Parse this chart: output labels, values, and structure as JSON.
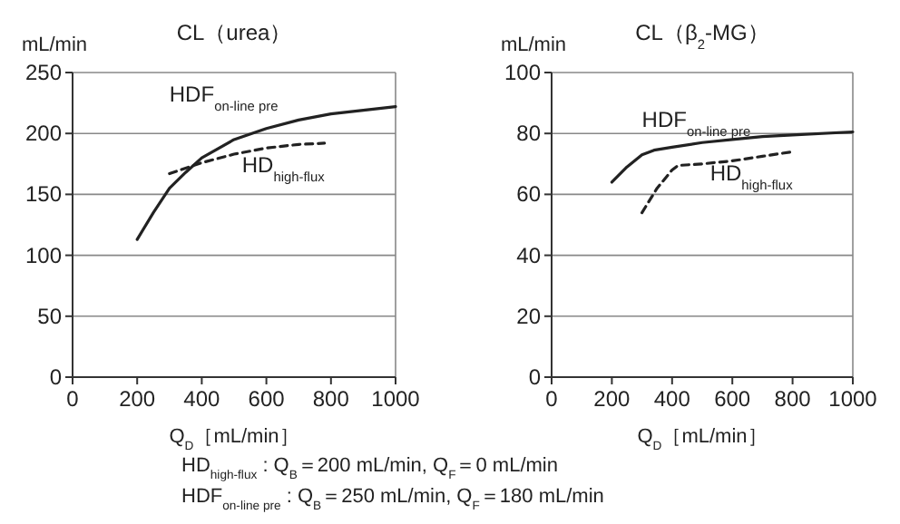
{
  "chart_data": [
    {
      "type": "line",
      "title": "CL（urea）",
      "ylabel": "mL/min",
      "xlabel": "Q$_{D}$［mL/min］",
      "xlim": [
        0,
        1000
      ],
      "xticks": [
        0,
        200,
        400,
        600,
        800,
        1000
      ],
      "ylim": [
        0,
        250
      ],
      "yticks": [
        0,
        50,
        100,
        150,
        200,
        250
      ],
      "grid": "y",
      "marker": "none",
      "annotations": [
        "HD$_{high-flux}$ : Q$_{B}$＝200 mL/min,   Q$_{F}$＝0 mL/min",
        "HDF$_{on-line pre}$ : Q$_{B}$＝250 mL/min,   Q$_{F}$＝180 mL/min"
      ],
      "series": [
        {
          "name": "HDF$_{on-line pre}$",
          "color": "#222222",
          "line_style": "solid",
          "x": [
            200,
            250,
            300,
            350,
            400,
            500,
            600,
            700,
            800,
            900,
            1000
          ],
          "values": [
            113,
            135,
            155,
            168,
            180,
            195,
            204,
            211,
            216,
            219,
            222
          ]
        },
        {
          "name": "HD$_{high-flux}$",
          "color": "#222222",
          "line_style": "dashed",
          "x": [
            300,
            400,
            500,
            600,
            700,
            780
          ],
          "values": [
            167,
            176,
            183,
            188,
            191,
            192
          ]
        }
      ]
    },
    {
      "type": "line",
      "title": "CL（β$_{2}$-MG）",
      "ylabel": "mL/min",
      "xlabel": "Q$_{D}$［mL/min］",
      "xlim": [
        0,
        1000
      ],
      "xticks": [
        0,
        200,
        400,
        600,
        800,
        1000
      ],
      "ylim": [
        0,
        100
      ],
      "yticks": [
        0,
        20,
        40,
        60,
        80,
        100
      ],
      "grid": "y",
      "marker": "none",
      "series": [
        {
          "name": "HDF$_{on-line pre}$",
          "color": "#222222",
          "line_style": "solid",
          "x": [
            200,
            250,
            300,
            340,
            400,
            500,
            600,
            700,
            800,
            1000
          ],
          "values": [
            64,
            69,
            73,
            74.5,
            75.5,
            77,
            78,
            79,
            79.5,
            80.5
          ]
        },
        {
          "name": "HD$_{high-flux}$",
          "color": "#222222",
          "line_style": "dashed",
          "x": [
            300,
            350,
            400,
            420,
            500,
            600,
            700,
            800
          ],
          "values": [
            54,
            62,
            68,
            69.5,
            70,
            71,
            72.5,
            74
          ]
        }
      ]
    }
  ]
}
